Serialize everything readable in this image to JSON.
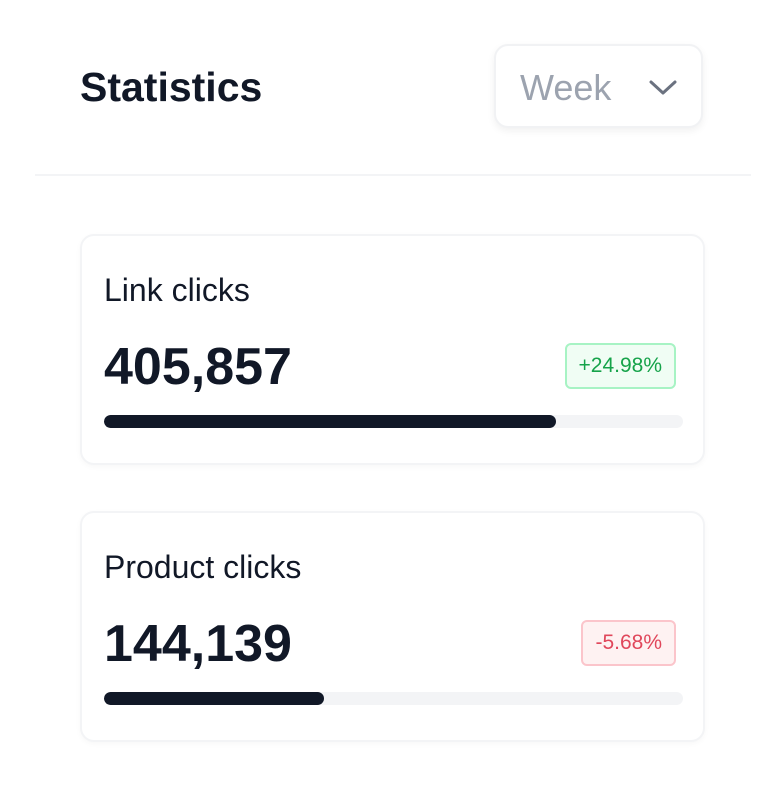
{
  "header": {
    "title": "Statistics",
    "period": "Week"
  },
  "cards": [
    {
      "label": "Link clicks",
      "value": "405,857",
      "change": "+24.98%",
      "trend": "up",
      "progress": 0.78
    },
    {
      "label": "Product clicks",
      "value": "144,139",
      "change": "-5.68%",
      "trend": "down",
      "progress": 0.38
    }
  ]
}
